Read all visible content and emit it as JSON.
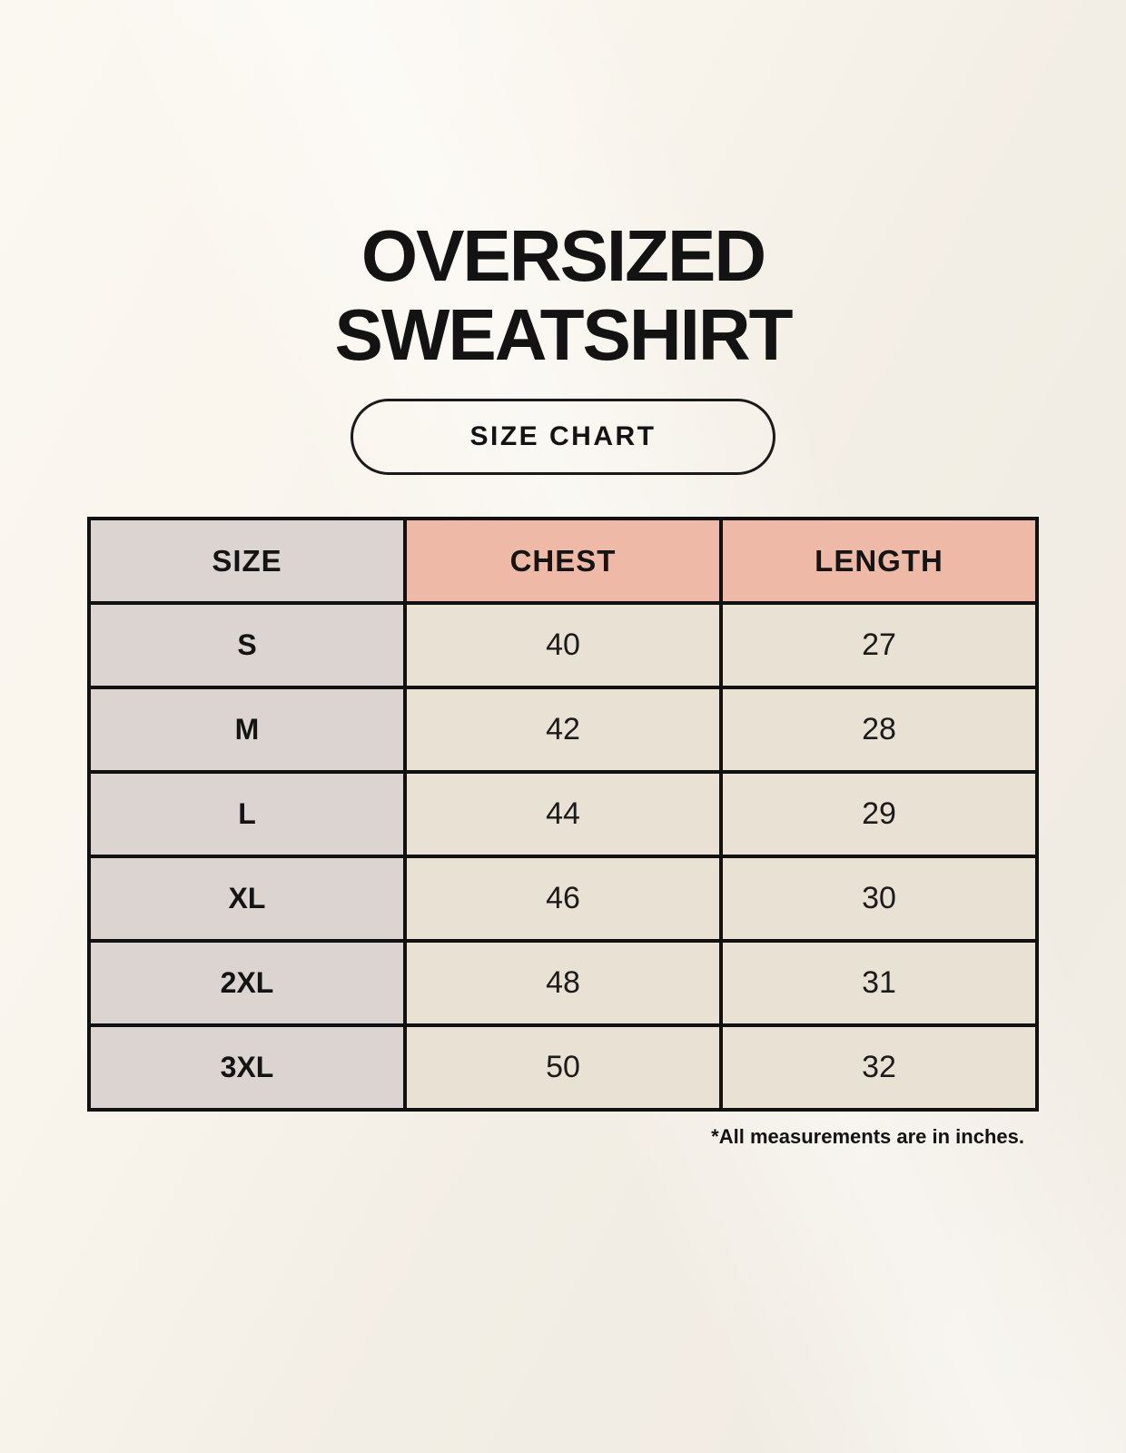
{
  "title": {
    "line1": "OVERSIZED",
    "line2": "SWEATSHIRT"
  },
  "size_chart_button": {
    "label": "SIZE CHART"
  },
  "footnote": "*All measurements are in inches.",
  "colors": {
    "page-bg": "#f8f4ec",
    "size-col-bg": "#dcd4d0",
    "measure-header-bg": "#efb9a8",
    "value-cell-bg": "#e9e2d4",
    "table-border": "#111111",
    "text": "#161616"
  },
  "chart_data": {
    "type": "table",
    "title": "OVERSIZED SWEATSHIRT",
    "subtitle": "SIZE CHART",
    "units": "inches",
    "columns": [
      "SIZE",
      "CHEST",
      "LENGTH"
    ],
    "rows": [
      {
        "size": "S",
        "chest": 40,
        "length": 27
      },
      {
        "size": "M",
        "chest": 42,
        "length": 28
      },
      {
        "size": "L",
        "chest": 44,
        "length": 29
      },
      {
        "size": "XL",
        "chest": 46,
        "length": 30
      },
      {
        "size": "2XL",
        "chest": 48,
        "length": 31
      },
      {
        "size": "3XL",
        "chest": 50,
        "length": 32
      }
    ],
    "note": "*All measurements are in inches."
  }
}
